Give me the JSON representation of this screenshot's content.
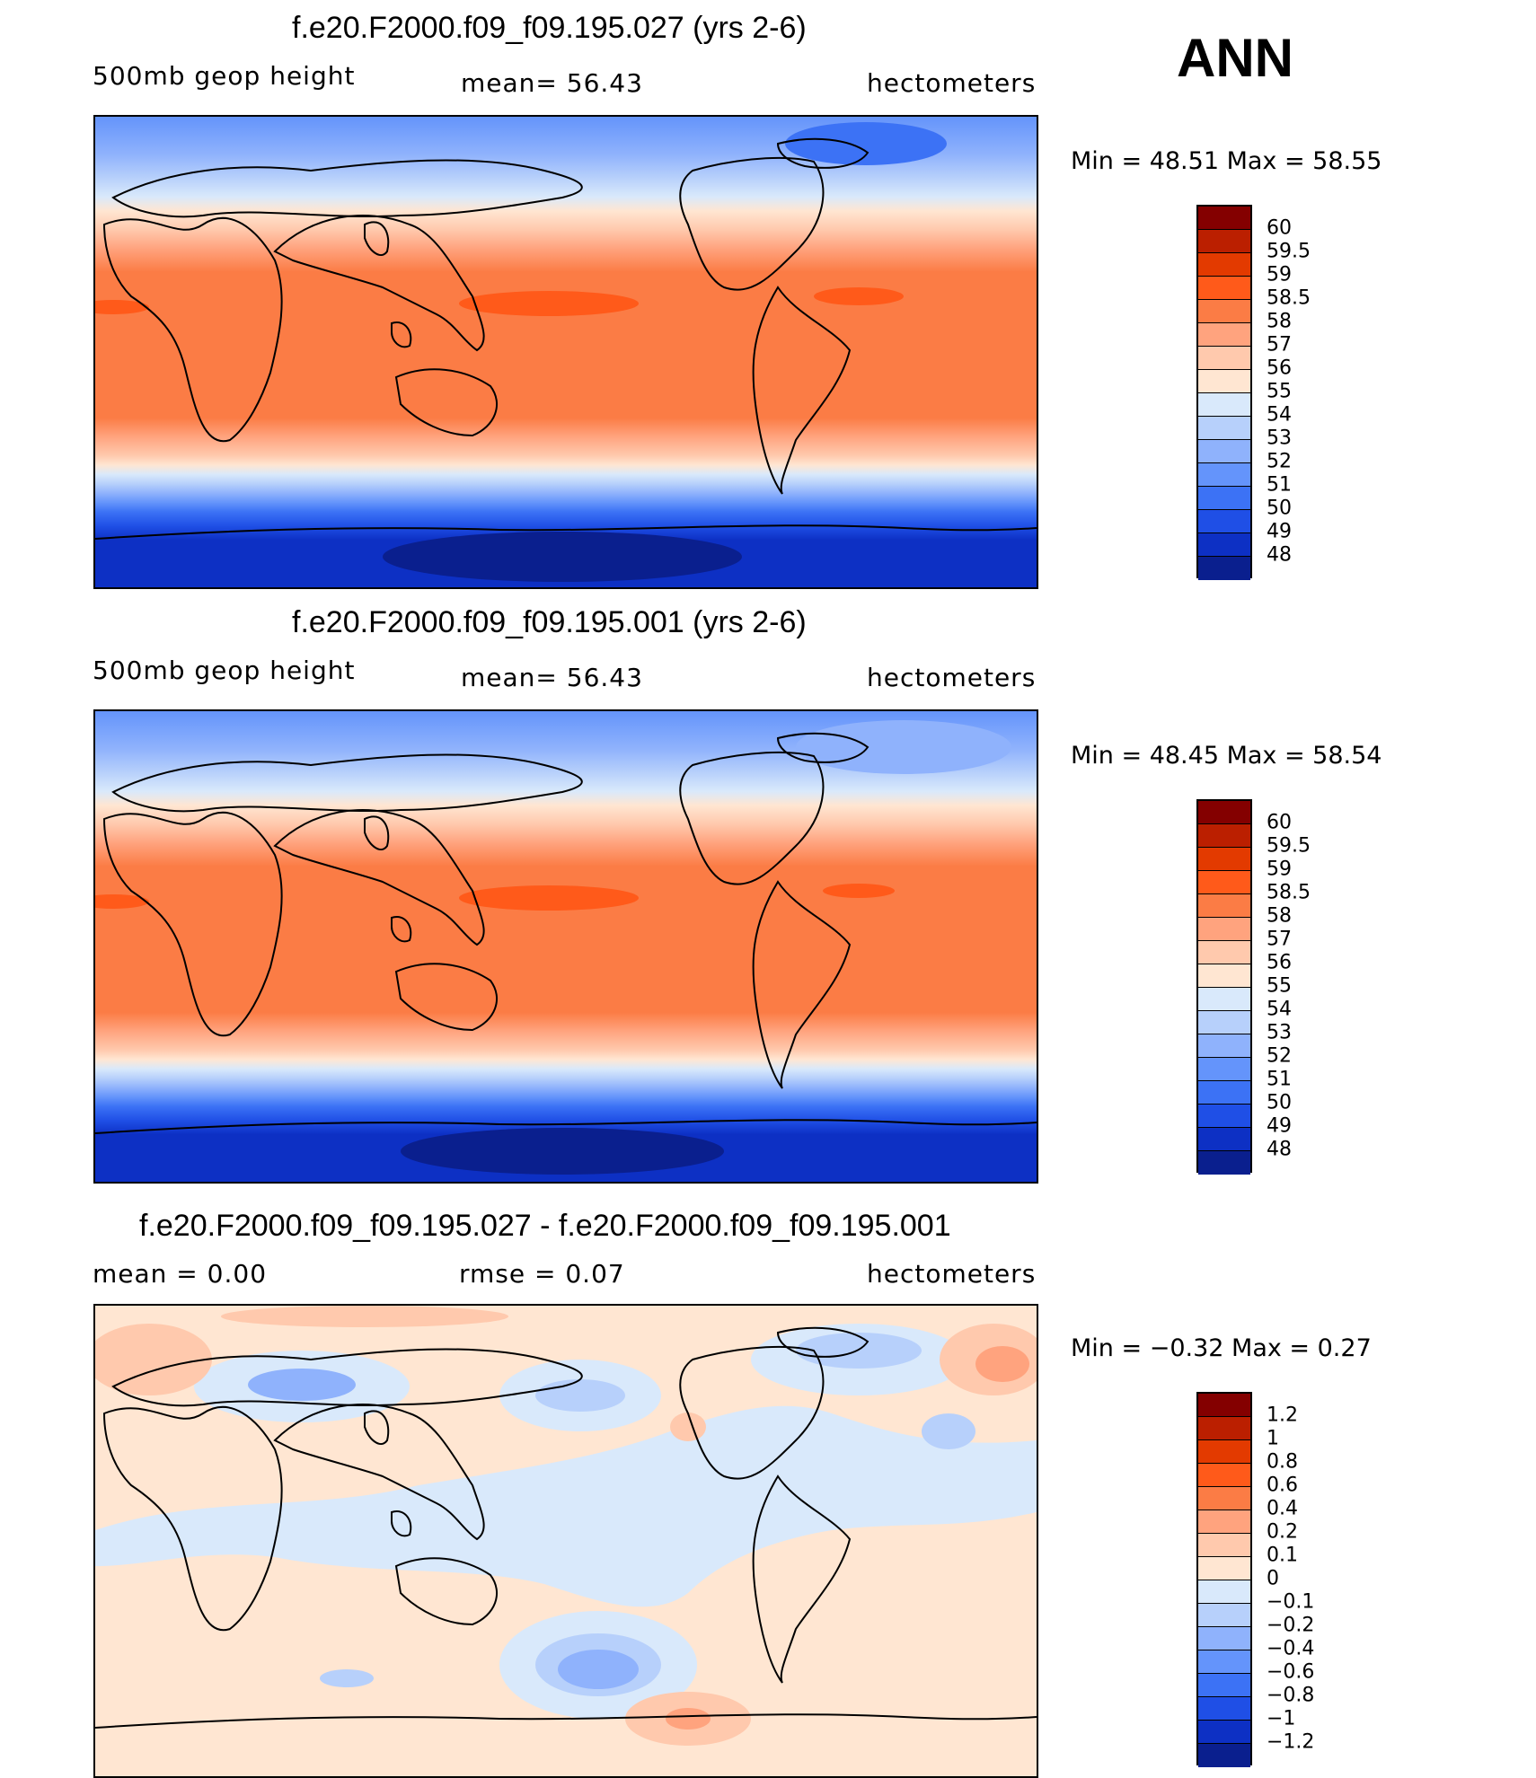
{
  "season": "ANN",
  "panels": [
    {
      "id": "top",
      "title": "f.e20.F2000.f09_f09.195.027 (yrs 2-6)",
      "left_label": "500mb  geop  height",
      "center_label": "mean=   56.43",
      "right_label": "hectometers",
      "minmax": "Min  =    48.51  Max  =    58.55",
      "field": "abs"
    },
    {
      "id": "mid",
      "title": "f.e20.F2000.f09_f09.195.001 (yrs 2-6)",
      "left_label": "500mb  geop  height",
      "center_label": "mean=   56.43",
      "right_label": "hectometers",
      "minmax": "Min  =    48.45  Max  =    58.54",
      "field": "abs"
    },
    {
      "id": "diff",
      "title": "f.e20.F2000.f09_f09.195.027 - f.e20.F2000.f09_f09.195.001",
      "left_label": "mean  =      0.00",
      "center_label": "rmse  =      0.07",
      "right_label": "hectometers",
      "minmax": "Min  =   −0.32  Max  =      0.27",
      "field": "diff"
    }
  ],
  "colorbars": {
    "abs": {
      "labels": [
        "60",
        "59.5",
        "59",
        "58.5",
        "58",
        "57",
        "56",
        "55",
        "54",
        "53",
        "52",
        "51",
        "50",
        "49",
        "48"
      ],
      "colors": [
        "#840000",
        "#bb1f00",
        "#e33a00",
        "#ff5a1a",
        "#fb7c45",
        "#ffa37e",
        "#ffc9ad",
        "#ffe6d2",
        "#d9e9fb",
        "#b7d0fb",
        "#8fb2fc",
        "#6494fb",
        "#3c72f5",
        "#1f4fe6",
        "#0d30c4",
        "#0a1f8e"
      ]
    },
    "diff": {
      "labels": [
        "1.2",
        "1",
        "0.8",
        "0.6",
        "0.4",
        "0.2",
        "0.1",
        "0",
        "−0.1",
        "−0.2",
        "−0.4",
        "−0.6",
        "−0.8",
        "−1",
        "−1.2"
      ],
      "colors": [
        "#840000",
        "#bb1f00",
        "#e33a00",
        "#ff5a1a",
        "#fb7c45",
        "#ffa37e",
        "#ffc9ad",
        "#ffe6d2",
        "#d9e9fb",
        "#b7d0fb",
        "#8fb2fc",
        "#6494fb",
        "#3c72f5",
        "#1f4fe6",
        "#0d30c4",
        "#0a1f8e"
      ]
    }
  }
}
